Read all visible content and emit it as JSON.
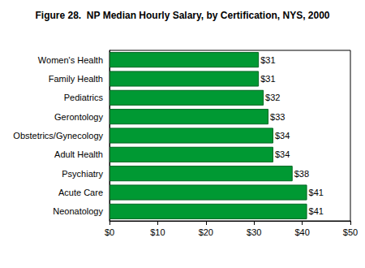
{
  "chart_data": {
    "type": "bar",
    "title": "Figure 28.  NP Median Hourly Salary, by Certification, NYS, 2000",
    "orientation": "horizontal",
    "categories": [
      "Women's Health",
      "Family Health",
      "Pediatrics",
      "Gerontology",
      "Obstetrics/Gynecology",
      "Adult Health",
      "Psychiatry",
      "Acute Care",
      "Neonatology"
    ],
    "values": [
      31,
      31,
      32,
      33,
      34,
      34,
      38,
      41,
      41
    ],
    "value_labels": [
      "$31",
      "$31",
      "$32",
      "$33",
      "$34",
      "$34",
      "$38",
      "$41",
      "$41"
    ],
    "color": "#009933",
    "data_labels": true,
    "xlim": [
      0,
      50
    ],
    "xticks": [
      {
        "value": 0,
        "label": "$0"
      },
      {
        "value": 10,
        "label": "$10"
      },
      {
        "value": 20,
        "label": "$20"
      },
      {
        "value": 30,
        "label": "$30"
      },
      {
        "value": 40,
        "label": "$40"
      },
      {
        "value": 50,
        "label": "$50"
      }
    ],
    "grid": false
  }
}
